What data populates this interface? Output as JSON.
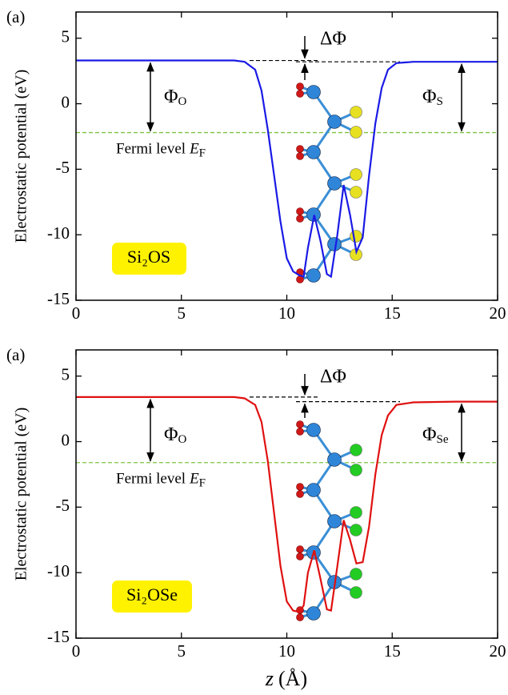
{
  "chart_data": [
    {
      "type": "line",
      "panel_label": "(a)",
      "ylabel": "Electrostatic potential (eV)",
      "xlim": [
        0,
        20
      ],
      "xticks": [
        0,
        5,
        10,
        15,
        20
      ],
      "ylim": [
        -15,
        7
      ],
      "yticks": [
        -15,
        -10,
        -5,
        0,
        5
      ],
      "x": [
        0,
        2,
        4,
        6,
        7,
        7.5,
        8,
        8.5,
        8.8,
        9.1,
        9.4,
        9.7,
        10,
        10.3,
        10.6,
        10.8,
        11,
        11.3,
        11.6,
        11.9,
        12.1,
        12.4,
        12.7,
        13,
        13.3,
        13.6,
        13.9,
        14.2,
        14.5,
        14.8,
        15.2,
        16,
        18,
        20
      ],
      "values": [
        3.3,
        3.3,
        3.3,
        3.3,
        3.3,
        3.3,
        3.2,
        2.6,
        1,
        -2,
        -5.5,
        -9,
        -11.8,
        -12.8,
        -13.1,
        -13.2,
        -11,
        -8.5,
        -10.5,
        -13,
        -13.2,
        -10,
        -6.2,
        -8.5,
        -11.3,
        -10.2,
        -5.5,
        -1.5,
        1.2,
        2.6,
        3.1,
        3.2,
        3.2,
        3.2
      ],
      "color": "#1a1ae6",
      "fermi_level": -2.2,
      "fermi_color": "#7cc242",
      "chalcogen_color": "#e6e020",
      "fermi_label": {
        "text": "Fermi level",
        "symbol": "E",
        "sub": "F"
      },
      "delta_label": "ΔΦ",
      "phi_left": {
        "symbol": "Φ",
        "sub": "O"
      },
      "phi_right": {
        "symbol": "Φ",
        "sub": "S"
      },
      "sample_label": "Si₂OS"
    },
    {
      "type": "line",
      "panel_label": "(a)",
      "ylabel": "Electrostatic potential (eV)",
      "xlabel": {
        "symbol": "z",
        "unit": "(Å)"
      },
      "xlim": [
        0,
        20
      ],
      "xticks": [
        0,
        5,
        10,
        15,
        20
      ],
      "ylim": [
        -15,
        7
      ],
      "yticks": [
        -15,
        -10,
        -5,
        0,
        5
      ],
      "x": [
        0,
        2,
        4,
        6,
        7,
        7.5,
        8,
        8.5,
        8.8,
        9.1,
        9.4,
        9.7,
        10,
        10.3,
        10.6,
        10.8,
        11,
        11.3,
        11.6,
        11.9,
        12.1,
        12.4,
        12.7,
        13,
        13.3,
        13.6,
        13.9,
        14.2,
        14.5,
        14.8,
        15.2,
        16,
        18,
        20
      ],
      "values": [
        3.4,
        3.4,
        3.4,
        3.4,
        3.4,
        3.4,
        3.3,
        2.8,
        1.5,
        -1.5,
        -5.5,
        -9.5,
        -12.2,
        -12.9,
        -13,
        -12.5,
        -10,
        -8.3,
        -10.5,
        -12.8,
        -12.9,
        -9.5,
        -6,
        -7.5,
        -9.3,
        -9.2,
        -6.5,
        -2.5,
        0.5,
        2,
        2.8,
        3.0,
        3.05,
        3.05
      ],
      "color": "#e01010",
      "fermi_level": -1.6,
      "fermi_color": "#7cc242",
      "chalcogen_color": "#22cc22",
      "fermi_label": {
        "text": "Fermi level",
        "symbol": "E",
        "sub": "F"
      },
      "delta_label": "ΔΦ",
      "phi_left": {
        "symbol": "Φ",
        "sub": "O"
      },
      "phi_right": {
        "symbol": "Φ",
        "sub": "Se"
      },
      "sample_label": "Si₂OSe"
    }
  ]
}
